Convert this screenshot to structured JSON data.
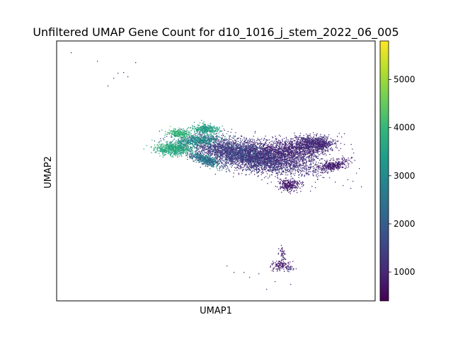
{
  "chart_data": {
    "type": "scatter",
    "title": "Unfiltered UMAP Gene Count for d10_1016_j_stem_2022_06_005",
    "xlabel": "UMAP1",
    "ylabel": "UMAP2",
    "x_ticks_shown": false,
    "y_ticks_shown": false,
    "grid": false,
    "colorbar": {
      "colormap": "viridis",
      "range": [
        400,
        5800
      ],
      "ticks": [
        1000,
        2000,
        3000,
        4000,
        5000
      ],
      "tick_labels": [
        "1000",
        "2000",
        "3000",
        "4000",
        "5000"
      ],
      "placement": "right"
    },
    "colormap_stops": [
      "#440154",
      "#482878",
      "#3e4989",
      "#31688e",
      "#26828e",
      "#1f9e89",
      "#35b779",
      "#6ece58",
      "#b5de2b",
      "#fde725"
    ],
    "clusters": [
      {
        "region": "main",
        "x_center": 0.0,
        "y_center": 0.0,
        "gene_count_typical": 1200
      },
      {
        "region": "main-left-arm",
        "x_center": -6.5,
        "y_center": 0.5,
        "gene_count_typical": 3800
      },
      {
        "region": "main-upper-left",
        "x_center": -4.5,
        "y_center": 1.6,
        "gene_count_typical": 3500
      },
      {
        "region": "lower-small",
        "x_center": 3.0,
        "y_center": -8.5,
        "gene_count_typical": 900
      },
      {
        "region": "upper-left-scatter",
        "x_center": -11.5,
        "y_center": 8.5,
        "gene_count_typical": 800
      }
    ]
  }
}
